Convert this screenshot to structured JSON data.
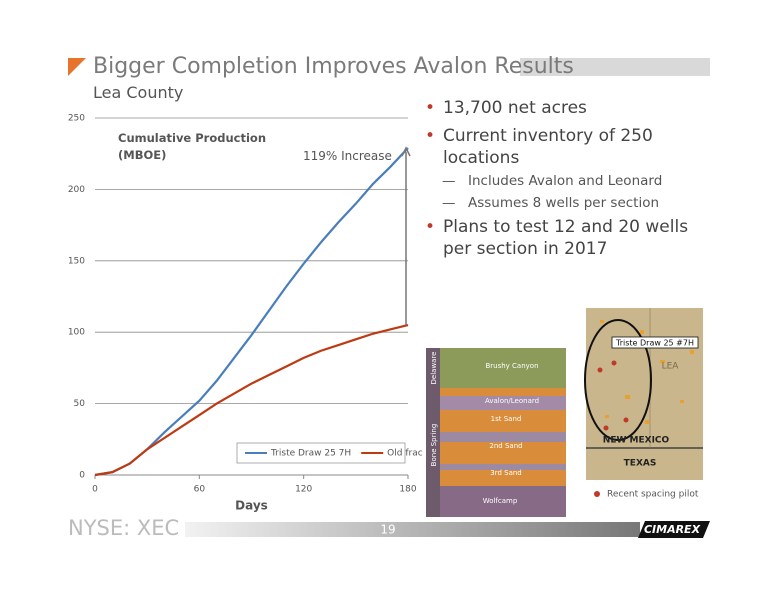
{
  "slide": {
    "title": "Bigger Completion Improves Avalon Results",
    "subtitle": "Lea County"
  },
  "chart_data": {
    "type": "line",
    "title": "Cumulative Production (MBOE)",
    "xlabel": "Days",
    "annotation": "119% Increase",
    "x": [
      0,
      10,
      20,
      30,
      40,
      50,
      60,
      70,
      80,
      90,
      100,
      110,
      120,
      130,
      140,
      150,
      160,
      170,
      180
    ],
    "series": [
      {
        "name": "Triste Draw 25 7H",
        "color": "#4a7ebb",
        "values": [
          0,
          2,
          8,
          18,
          30,
          41,
          52,
          66,
          82,
          98,
          115,
          132,
          148,
          163,
          177,
          190,
          204,
          216,
          229
        ]
      },
      {
        "name": "Old frac",
        "color": "#be3a12",
        "values": [
          0,
          2,
          8,
          18,
          26,
          34,
          42,
          50,
          57,
          64,
          70,
          76,
          82,
          87,
          91,
          95,
          99,
          102,
          105
        ]
      }
    ],
    "xlim": [
      0,
      180
    ],
    "xticks": [
      0,
      60,
      120,
      180
    ],
    "ylim": [
      0,
      250
    ],
    "yticks": [
      0,
      50,
      100,
      150,
      200,
      250
    ],
    "grid": true,
    "legend": "lower right"
  },
  "bullets": [
    "13,700 net acres",
    "Current inventory of 250 locations",
    "Plans to test 12 and 20 wells per section in 2017"
  ],
  "sub_bullets": [
    "Includes Avalon and Leonard",
    "Assumes 8 wells per section"
  ],
  "geology": {
    "groups": [
      "Delaware",
      "Bone Spring"
    ],
    "layers": [
      "Brushy Canyon",
      "Avalon/Leonard",
      "1st Sand",
      "2nd Sand",
      "3rd Sand",
      "Wolfcamp"
    ]
  },
  "map": {
    "well": "Triste Draw 25 #7H",
    "county": "LEA",
    "states": [
      "NEW MEXICO",
      "TEXAS"
    ],
    "legend": "Recent spacing pilot"
  },
  "footer": {
    "ticker": "NYSE: XEC",
    "page": "19",
    "logo": "CIMAREX"
  }
}
